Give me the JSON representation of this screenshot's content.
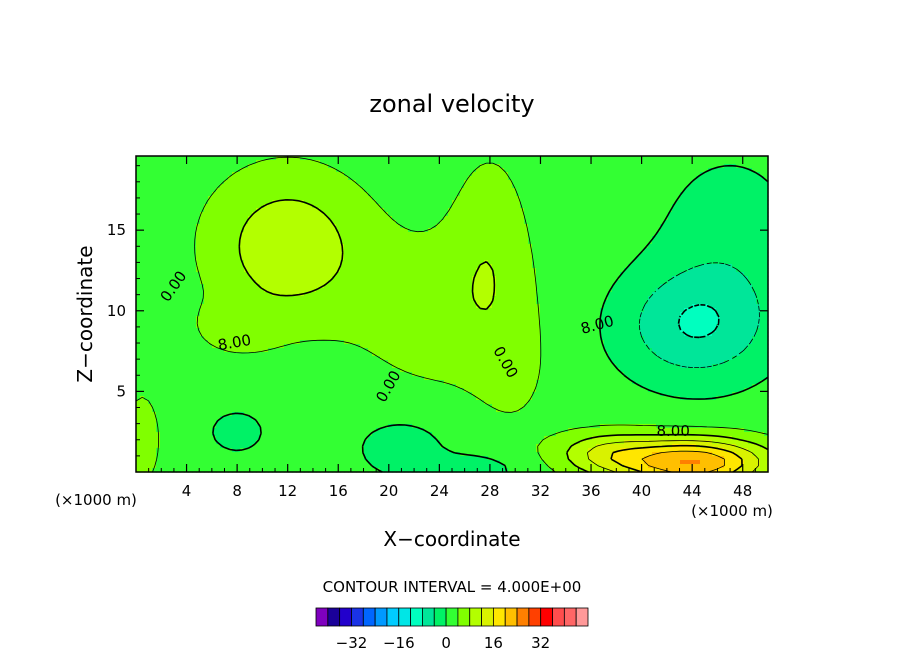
{
  "chart_data": {
    "type": "contour",
    "title": "zonal velocity",
    "xlabel": "X−coordinate",
    "ylabel": "Z−coordinate",
    "x_unit": "(×1000 m)",
    "y_unit": "(×1000 m)",
    "xlim": [
      0,
      50
    ],
    "ylim": [
      0,
      19.6
    ],
    "xticks": [
      4,
      8,
      12,
      16,
      20,
      24,
      28,
      32,
      36,
      40,
      44,
      48
    ],
    "yticks": [
      5,
      10,
      15
    ],
    "contour_interval_text": "CONTOUR INTERVAL = 4.000E+00",
    "contour_labels": [
      {
        "text": "0.00",
        "x": 3.0,
        "y": 11.5,
        "angle": -55
      },
      {
        "text": "8.00",
        "x": 7.8,
        "y": 8.0,
        "angle": -10
      },
      {
        "text": "0.00",
        "x": 20.0,
        "y": 5.3,
        "angle": -60
      },
      {
        "text": "0.00",
        "x": 29.2,
        "y": 6.8,
        "angle": 60
      },
      {
        "text": "8.00",
        "x": 36.5,
        "y": 9.1,
        "angle": -15
      },
      {
        "text": "8.00",
        "x": 42.5,
        "y": 2.5,
        "angle": 0
      }
    ],
    "colorbar": {
      "colors": [
        "#7f00bf",
        "#1a0099",
        "#2200cc",
        "#1a33e6",
        "#0066ff",
        "#0099ff",
        "#00ccff",
        "#00e6e6",
        "#00ffbf",
        "#00e699",
        "#00f266",
        "#33ff33",
        "#80ff00",
        "#b3ff00",
        "#d9f200",
        "#ffe600",
        "#ffbf00",
        "#ff8000",
        "#ff4000",
        "#ff0000",
        "#ff4d4d",
        "#ff6666",
        "#ff9999"
      ],
      "tick_labels": [
        "−32",
        "−16",
        "0",
        "16",
        "32"
      ],
      "tick_values": [
        -32,
        -16,
        0,
        16,
        32
      ],
      "range": [
        -44,
        48
      ]
    }
  }
}
